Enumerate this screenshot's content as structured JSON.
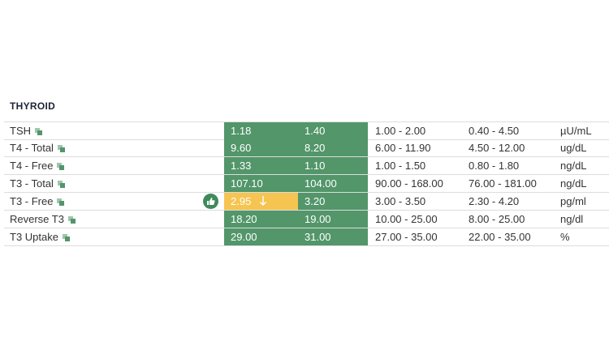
{
  "section": {
    "title": "THYROID",
    "rows": [
      {
        "name": "TSH",
        "result": "1.18",
        "previous": "1.40",
        "optimal": "1.00 - 2.00",
        "standard": "0.40 - 4.50",
        "unit": "µU/mL"
      },
      {
        "name": "T4 - Total",
        "result": "9.60",
        "previous": "8.20",
        "optimal": "6.00 - 11.90",
        "standard": "4.50 - 12.00",
        "unit": "ug/dL"
      },
      {
        "name": "T4 - Free",
        "result": "1.33",
        "previous": "1.10",
        "optimal": "1.00 - 1.50",
        "standard": "0.80 - 1.80",
        "unit": "ng/dL"
      },
      {
        "name": "T3 - Total",
        "result": "107.10",
        "previous": "104.00",
        "optimal": "90.00 - 168.00",
        "standard": "76.00 - 181.00",
        "unit": "ng/dL"
      },
      {
        "name": "T3 - Free",
        "result": "2.95",
        "previous": "3.20",
        "optimal": "3.00 - 3.50",
        "standard": "2.30 - 4.20",
        "unit": "pg/ml"
      },
      {
        "name": "Reverse T3",
        "result": "18.20",
        "previous": "19.00",
        "optimal": "10.00 - 25.00",
        "standard": "8.00 - 25.00",
        "unit": "ng/dl"
      },
      {
        "name": "T3 Uptake",
        "result": "29.00",
        "previous": "31.00",
        "optimal": "27.00 - 35.00",
        "standard": "22.00 - 35.00",
        "unit": "%"
      }
    ]
  }
}
